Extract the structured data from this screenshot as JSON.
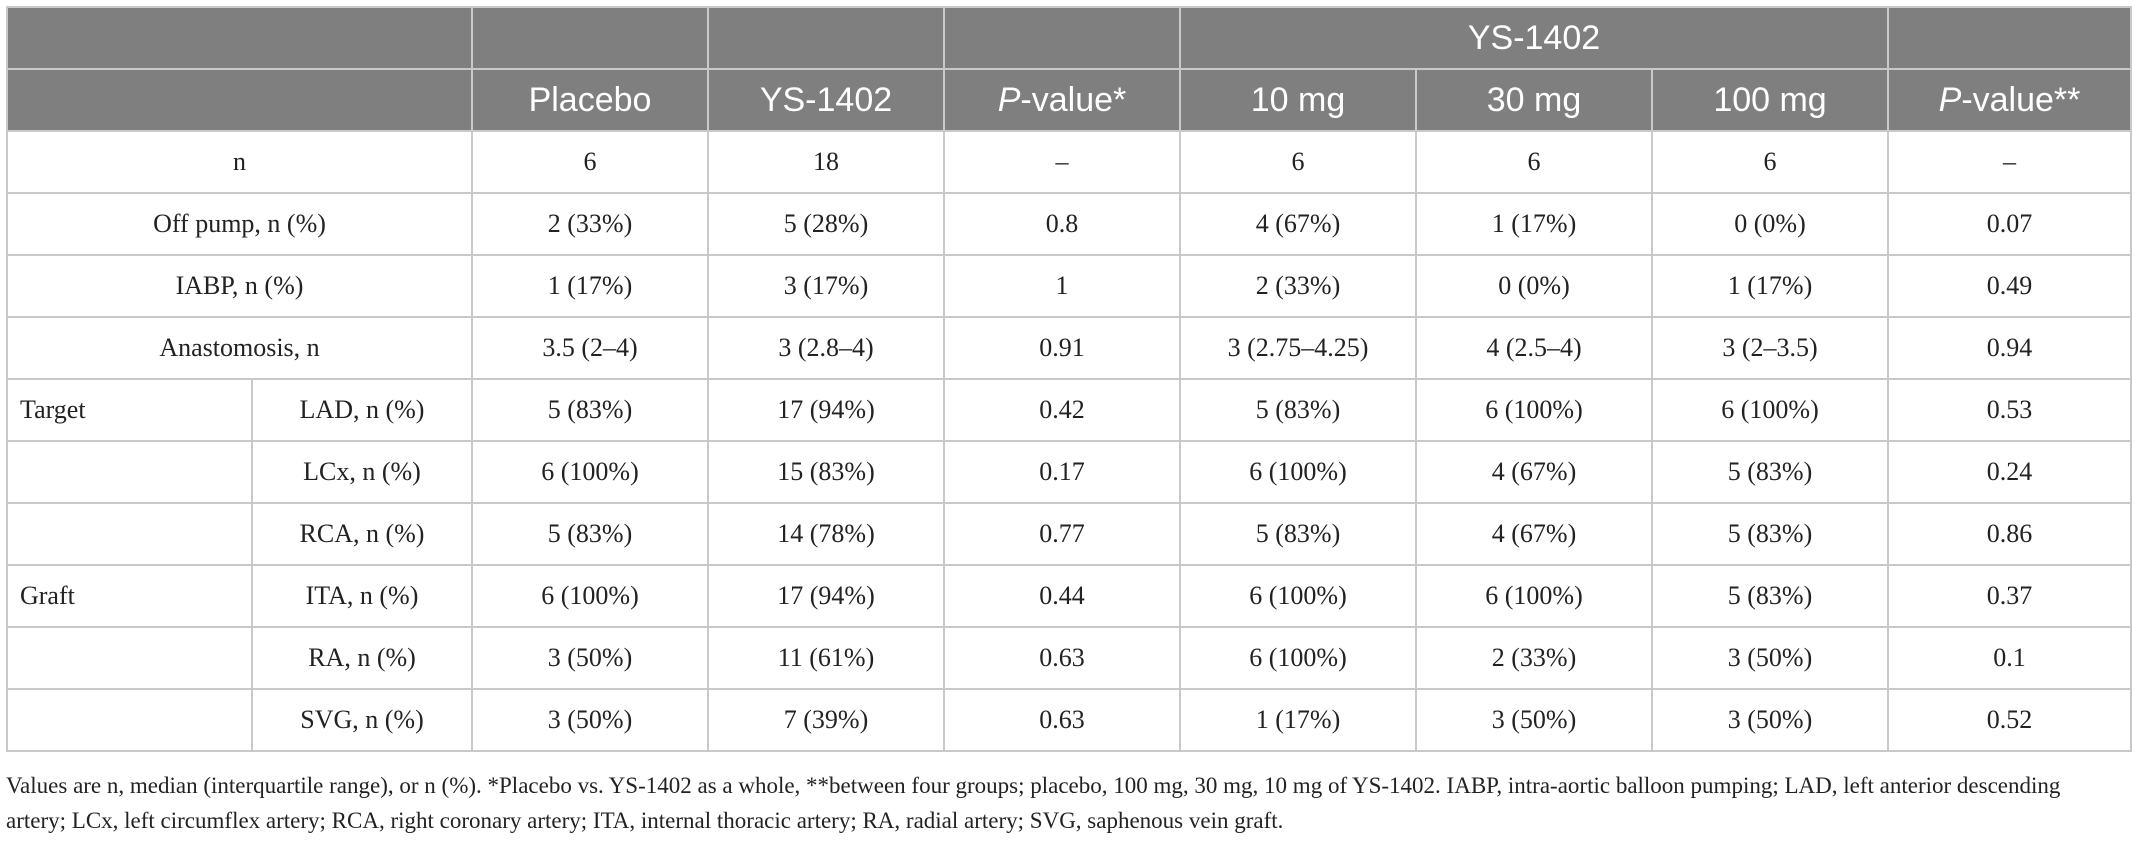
{
  "header": {
    "group_label": "YS-1402",
    "columns": {
      "placebo": "Placebo",
      "ys1402": "YS-1402",
      "p1_italic": "P",
      "p1_rest": "-value*",
      "d10": "10 mg",
      "d30": "30 mg",
      "d100": "100 mg",
      "p2_italic": "P",
      "p2_rest": "-value**"
    }
  },
  "rows": [
    {
      "label": "n",
      "placebo": "6",
      "ys1402": "18",
      "p1": "–",
      "d10": "6",
      "d30": "6",
      "d100": "6",
      "p2": "–"
    },
    {
      "label": "Off pump, n (%)",
      "placebo": "2 (33%)",
      "ys1402": "5 (28%)",
      "p1": "0.8",
      "d10": "4 (67%)",
      "d30": "1 (17%)",
      "d100": "0 (0%)",
      "p2": "0.07"
    },
    {
      "label": "IABP, n (%)",
      "placebo": "1 (17%)",
      "ys1402": "3 (17%)",
      "p1": "1",
      "d10": "2 (33%)",
      "d30": "0 (0%)",
      "d100": "1 (17%)",
      "p2": "0.49"
    },
    {
      "label": "Anastomosis, n",
      "placebo": "3.5 (2–4)",
      "ys1402": "3 (2.8–4)",
      "p1": "0.91",
      "d10": "3 (2.75–4.25)",
      "d30": "4 (2.5–4)",
      "d100": "3 (2–3.5)",
      "p2": "0.94"
    },
    {
      "group": "Target",
      "label": "LAD, n (%)",
      "placebo": "5 (83%)",
      "ys1402": "17 (94%)",
      "p1": "0.42",
      "d10": "5 (83%)",
      "d30": "6 (100%)",
      "d100": "6 (100%)",
      "p2": "0.53"
    },
    {
      "group": "",
      "label": "LCx, n (%)",
      "placebo": "6 (100%)",
      "ys1402": "15 (83%)",
      "p1": "0.17",
      "d10": "6 (100%)",
      "d30": "4 (67%)",
      "d100": "5 (83%)",
      "p2": "0.24"
    },
    {
      "group": "",
      "label": "RCA, n (%)",
      "placebo": "5 (83%)",
      "ys1402": "14 (78%)",
      "p1": "0.77",
      "d10": "5 (83%)",
      "d30": "4 (67%)",
      "d100": "5 (83%)",
      "p2": "0.86"
    },
    {
      "group": "Graft",
      "label": "ITA, n (%)",
      "placebo": "6 (100%)",
      "ys1402": "17 (94%)",
      "p1": "0.44",
      "d10": "6 (100%)",
      "d30": "6 (100%)",
      "d100": "5 (83%)",
      "p2": "0.37"
    },
    {
      "group": "",
      "label": "RA, n (%)",
      "placebo": "3 (50%)",
      "ys1402": "11 (61%)",
      "p1": "0.63",
      "d10": "6 (100%)",
      "d30": "2 (33%)",
      "d100": "3 (50%)",
      "p2": "0.1"
    },
    {
      "group": "",
      "label": "SVG, n (%)",
      "placebo": "3 (50%)",
      "ys1402": "7 (39%)",
      "p1": "0.63",
      "d10": "1 (17%)",
      "d30": "3 (50%)",
      "d100": "3 (50%)",
      "p2": "0.52"
    }
  ],
  "footnote": "Values are n, median (interquartile range), or n (%). *Placebo vs. YS-1402 as a whole, **between four groups; placebo, 100 mg, 30 mg, 10 mg of YS-1402. IABP, intra-aortic balloon pumping; LAD, left anterior descending artery; LCx, left circumflex artery; RCA, right coronary artery; ITA, internal thoracic artery; RA, radial artery; SVG, saphenous vein graft.",
  "colors": {
    "header_bg": "#7f7f7f",
    "header_text": "#ffffff",
    "grid": "#c9c9c9"
  }
}
